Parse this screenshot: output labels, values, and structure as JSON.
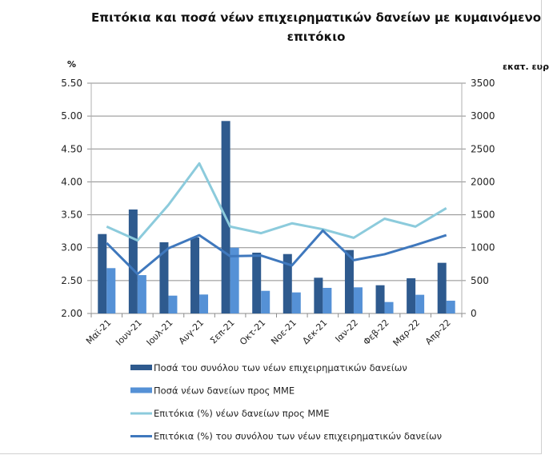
{
  "chart_data": {
    "type": "bar+line",
    "title": "Επιτόκια και ποσά νέων επιχειρηματικών δανείων με κυμαινόμενο επιτόκιο",
    "ylabel_left": "%",
    "ylabel_right": "εκατ. ευρώ",
    "ylim_left": [
      2.0,
      5.5
    ],
    "ylim_right": [
      0,
      3500
    ],
    "yticks_left": [
      "2.00",
      "2.50",
      "3.00",
      "3.50",
      "4.00",
      "4.50",
      "5.00",
      "5.50"
    ],
    "yticks_right": [
      "0",
      "500",
      "1000",
      "1500",
      "2000",
      "2500",
      "3000",
      "3500"
    ],
    "grid": true,
    "legend_placement": "bottom",
    "categories": [
      "Μαϊ-21",
      "Ιουν-21",
      "Ιουλ-21",
      "Αυγ-21",
      "Σεπ-21",
      "Οκτ-21",
      "Νοε-21",
      "Δεκ-21",
      "Ιαν-22",
      "Φεβ-22",
      "Μαρ-22",
      "Απρ-22"
    ],
    "series": [
      {
        "name": "Ποσά του συνόλου των νέων επιχειρηματικών δανείων",
        "type": "bar",
        "axis": "right",
        "color": "#2e5a8e",
        "values": [
          1207,
          1580,
          1082,
          1155,
          2925,
          924,
          903,
          543,
          964,
          429,
          535,
          770
        ]
      },
      {
        "name": "Ποσά νέων δανείων προς ΜΜΕ",
        "type": "bar",
        "axis": "right",
        "color": "#5591d6",
        "values": [
          689,
          583,
          271,
          288,
          1000,
          344,
          320,
          389,
          397,
          174,
          284,
          194
        ]
      },
      {
        "name": "Επιτόκια (%) νέων δανείων προς ΜΜΕ",
        "type": "line",
        "axis": "left",
        "color": "#8ccbdc",
        "values": [
          3.32,
          3.11,
          3.65,
          4.28,
          3.32,
          3.22,
          3.37,
          3.28,
          3.15,
          3.44,
          3.32,
          3.6
        ]
      },
      {
        "name": "Επιτόκια (%) του συνόλου των νέων επιχειρηματικών δανείων",
        "type": "line",
        "axis": "left",
        "color": "#3f78bd",
        "values": [
          3.07,
          2.6,
          2.99,
          3.19,
          2.87,
          2.88,
          2.73,
          3.26,
          2.81,
          2.9,
          3.04,
          3.19
        ]
      }
    ]
  }
}
